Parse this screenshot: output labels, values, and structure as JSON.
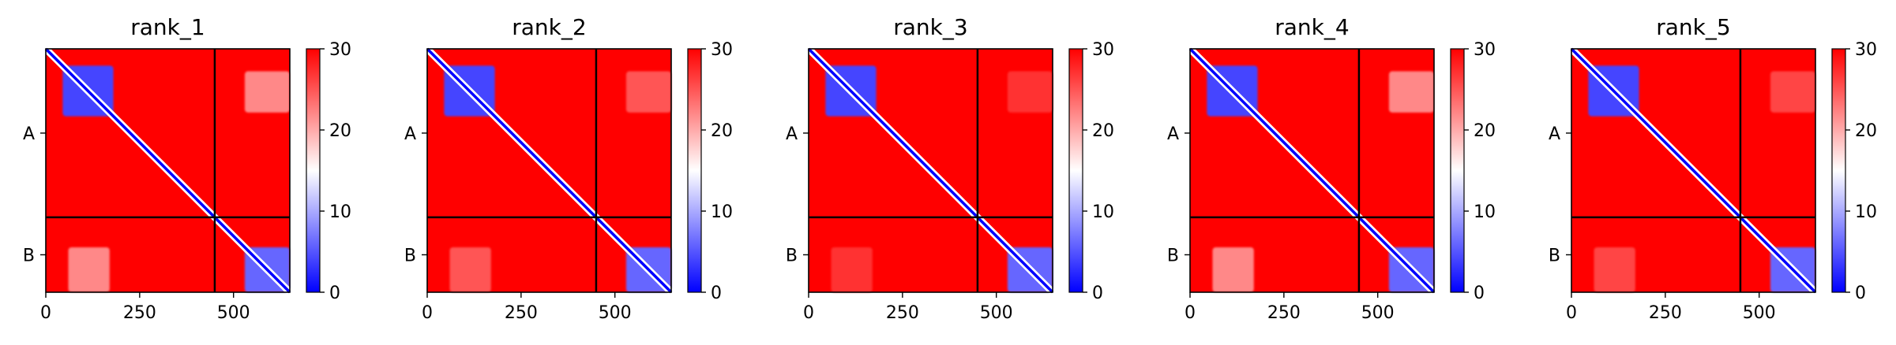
{
  "chart_data": [
    {
      "type": "heatmap",
      "title": "rank_1",
      "xlabel": "",
      "ylabel": "",
      "x_ticks": [
        0,
        250,
        500
      ],
      "y_tick_labels": [
        "A",
        "B"
      ],
      "xlim": [
        0,
        650
      ],
      "chain_boundary": 450,
      "colorbar": {
        "min": 0,
        "max": 30,
        "ticks": [
          0,
          10,
          20,
          30
        ],
        "colors": [
          "#0000ff",
          "#ffffff",
          "#ff0000"
        ]
      },
      "blocks": [
        {
          "x": [
            45,
            180
          ],
          "y": [
            45,
            180
          ],
          "value": 4
        },
        {
          "x": [
            530,
            650
          ],
          "y": [
            530,
            650
          ],
          "value": 6
        },
        {
          "x": [
            530,
            650
          ],
          "y": [
            60,
            170
          ],
          "value": 22
        },
        {
          "x": [
            60,
            170
          ],
          "y": [
            530,
            650
          ],
          "value": 22
        }
      ]
    },
    {
      "type": "heatmap",
      "title": "rank_2",
      "xlabel": "",
      "ylabel": "",
      "x_ticks": [
        0,
        250,
        500
      ],
      "y_tick_labels": [
        "A",
        "B"
      ],
      "xlim": [
        0,
        650
      ],
      "chain_boundary": 450,
      "colorbar": {
        "min": 0,
        "max": 30,
        "ticks": [
          0,
          10,
          20,
          30
        ],
        "colors": [
          "#0000ff",
          "#ffffff",
          "#ff0000"
        ]
      },
      "blocks": [
        {
          "x": [
            45,
            180
          ],
          "y": [
            45,
            180
          ],
          "value": 4
        },
        {
          "x": [
            530,
            650
          ],
          "y": [
            530,
            650
          ],
          "value": 6
        },
        {
          "x": [
            530,
            650
          ],
          "y": [
            60,
            170
          ],
          "value": 25
        },
        {
          "x": [
            60,
            170
          ],
          "y": [
            530,
            650
          ],
          "value": 25
        }
      ]
    },
    {
      "type": "heatmap",
      "title": "rank_3",
      "xlabel": "",
      "ylabel": "",
      "x_ticks": [
        0,
        250,
        500
      ],
      "y_tick_labels": [
        "A",
        "B"
      ],
      "xlim": [
        0,
        650
      ],
      "chain_boundary": 450,
      "colorbar": {
        "min": 0,
        "max": 30,
        "ticks": [
          0,
          10,
          20,
          30
        ],
        "colors": [
          "#0000ff",
          "#ffffff",
          "#ff0000"
        ]
      },
      "blocks": [
        {
          "x": [
            45,
            180
          ],
          "y": [
            45,
            180
          ],
          "value": 4
        },
        {
          "x": [
            530,
            650
          ],
          "y": [
            530,
            650
          ],
          "value": 6
        },
        {
          "x": [
            530,
            650
          ],
          "y": [
            60,
            170
          ],
          "value": 27
        },
        {
          "x": [
            60,
            170
          ],
          "y": [
            530,
            650
          ],
          "value": 27
        }
      ]
    },
    {
      "type": "heatmap",
      "title": "rank_4",
      "xlabel": "",
      "ylabel": "",
      "x_ticks": [
        0,
        250,
        500
      ],
      "y_tick_labels": [
        "A",
        "B"
      ],
      "xlim": [
        0,
        650
      ],
      "chain_boundary": 450,
      "colorbar": {
        "min": 0,
        "max": 30,
        "ticks": [
          0,
          10,
          20,
          30
        ],
        "colors": [
          "#0000ff",
          "#ffffff",
          "#ff0000"
        ]
      },
      "blocks": [
        {
          "x": [
            45,
            180
          ],
          "y": [
            45,
            180
          ],
          "value": 4
        },
        {
          "x": [
            530,
            650
          ],
          "y": [
            530,
            650
          ],
          "value": 6
        },
        {
          "x": [
            530,
            650
          ],
          "y": [
            60,
            170
          ],
          "value": 22
        },
        {
          "x": [
            60,
            170
          ],
          "y": [
            530,
            650
          ],
          "value": 22
        }
      ]
    },
    {
      "type": "heatmap",
      "title": "rank_5",
      "xlabel": "",
      "ylabel": "",
      "x_ticks": [
        0,
        250,
        500
      ],
      "y_tick_labels": [
        "A",
        "B"
      ],
      "xlim": [
        0,
        650
      ],
      "chain_boundary": 450,
      "colorbar": {
        "min": 0,
        "max": 30,
        "ticks": [
          0,
          10,
          20,
          30
        ],
        "colors": [
          "#0000ff",
          "#ffffff",
          "#ff0000"
        ]
      },
      "blocks": [
        {
          "x": [
            45,
            180
          ],
          "y": [
            45,
            180
          ],
          "value": 4
        },
        {
          "x": [
            530,
            650
          ],
          "y": [
            530,
            650
          ],
          "value": 6
        },
        {
          "x": [
            530,
            650
          ],
          "y": [
            60,
            170
          ],
          "value": 26
        },
        {
          "x": [
            60,
            170
          ],
          "y": [
            530,
            650
          ],
          "value": 26
        }
      ]
    }
  ]
}
